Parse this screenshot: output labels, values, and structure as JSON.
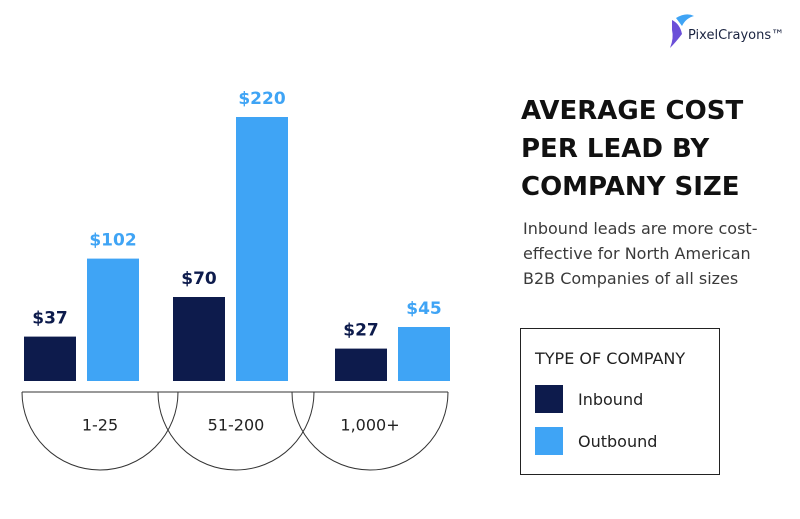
{
  "brand": "PixelCrayons™",
  "chart_data": {
    "type": "bar",
    "title": "AVERAGE COST PER LEAD BY COMPANY SIZE",
    "subtitle": "Inbound leads are more cost-effective for North American B2B Companies of all sizes",
    "categories": [
      "1-25",
      "51-200",
      "1,000+"
    ],
    "legend_title": "TYPE OF COMPANY",
    "series": [
      {
        "name": "Inbound",
        "color": "#0d1b4c",
        "values": [
          37,
          70,
          27
        ],
        "value_labels": [
          "$37",
          "$70",
          "$27"
        ]
      },
      {
        "name": "Outbound",
        "color": "#3fa4f5",
        "values": [
          102,
          220,
          45
        ],
        "value_labels": [
          "$102",
          "$220",
          "$45"
        ]
      }
    ]
  }
}
